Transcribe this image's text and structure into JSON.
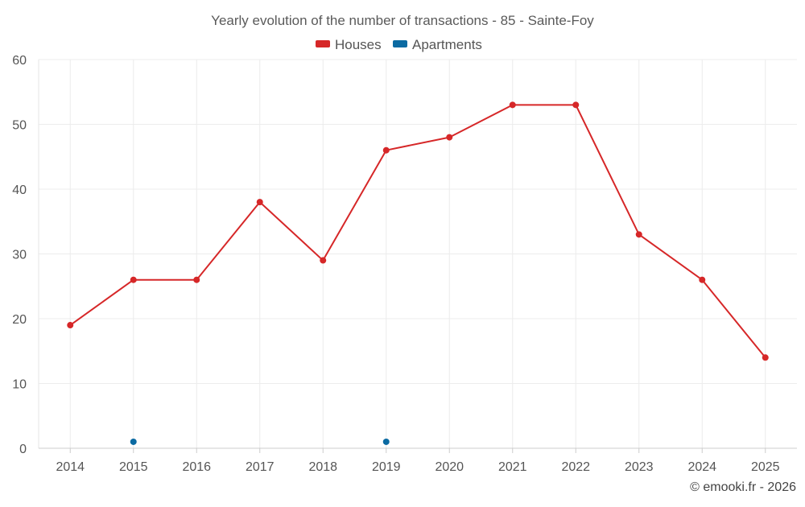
{
  "chart_data": {
    "type": "line",
    "title": "Yearly evolution of the number of transactions - 85 - Sainte-Foy",
    "xlabel": "",
    "ylabel": "",
    "categories": [
      "2014",
      "2015",
      "2016",
      "2017",
      "2018",
      "2019",
      "2020",
      "2021",
      "2022",
      "2023",
      "2024",
      "2025"
    ],
    "ylim": [
      0,
      60
    ],
    "yticks": [
      0,
      10,
      20,
      30,
      40,
      50,
      60
    ],
    "grid": true,
    "legend_position": "top-center",
    "series": [
      {
        "name": "Houses",
        "color": "#d62728",
        "values": [
          19,
          26,
          26,
          38,
          29,
          46,
          48,
          53,
          53,
          33,
          26,
          14
        ]
      },
      {
        "name": "Apartments",
        "color": "#0b6aa2",
        "values": [
          null,
          1,
          null,
          null,
          null,
          1,
          null,
          null,
          null,
          null,
          null,
          null
        ]
      }
    ]
  },
  "footer": {
    "credit": "© emooki.fr - 2026"
  }
}
